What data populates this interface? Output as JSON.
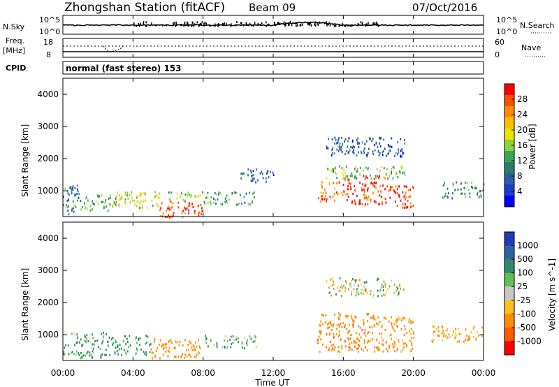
{
  "header": {
    "station": "Zhongshan Station (fitACF)",
    "beam": "Beam 09",
    "date": "07/Oct/2016"
  },
  "noise_panel": {
    "left_label": "N.Sky",
    "left_ticks": [
      "10^5",
      "10^0"
    ],
    "right_ticks": [
      "10^5",
      "10^0"
    ],
    "right_label": "N.Search"
  },
  "freq_panel": {
    "left_label_1": "Freq.",
    "left_label_2": "[MHz]",
    "left_ticks": [
      "18",
      "8"
    ],
    "right_ticks": [
      "60",
      "0"
    ],
    "right_label": "Nave"
  },
  "cpid_panel": {
    "label": "CPID",
    "text": "normal (fast stereo) 153"
  },
  "axes": {
    "ylabel": "Slant Range [km]",
    "xlabel": "Time UT",
    "yticks": [
      "4000",
      "3000",
      "2000",
      "1000"
    ],
    "xticks": [
      "00:00",
      "04:00",
      "08:00",
      "12:00",
      "16:00",
      "20:00",
      "00:00"
    ]
  },
  "power_colorbar": {
    "label": "Power [dB]",
    "ticks": [
      "28",
      "24",
      "20",
      "16",
      "12",
      "8",
      "4"
    ],
    "colors": [
      "#ff0000",
      "#ff4f00",
      "#ff8a00",
      "#ffbf00",
      "#e8e600",
      "#8cd23c",
      "#3aa65a",
      "#2e7d6a",
      "#2a5caa",
      "#1a3cd0",
      "#0000ff"
    ]
  },
  "velocity_colorbar": {
    "label": "Velocity [m s^-1]",
    "ticks": [
      "1000",
      "500",
      "100",
      "25",
      "-25",
      "-100",
      "-500",
      "-1000"
    ],
    "colors": [
      "#1e3cb4",
      "#2d64a0",
      "#2e8a6a",
      "#5fc050",
      "#c8c8c8",
      "#ffbf1e",
      "#ff8c00",
      "#ff5a00",
      "#ff0000"
    ]
  },
  "chart_data": [
    {
      "type": "heatmap",
      "name": "",
      "x_range_hours": [
        0,
        24
      ],
      "y_range_km": [
        200,
        4500
      ],
      "colorbar_label": "Power [dB]",
      "colorbar_ticks": [
        4,
        8,
        12,
        16,
        20,
        24,
        28
      ],
      "regions": [
        {
          "t": [
            0.0,
            1.0
          ],
          "r": [
            300,
            1200
          ],
          "value_db": 10
        },
        {
          "t": [
            1.0,
            3.0
          ],
          "r": [
            400,
            900
          ],
          "value_db": 14
        },
        {
          "t": [
            3.0,
            5.5
          ],
          "r": [
            500,
            1000
          ],
          "value_db": 18
        },
        {
          "t": [
            5.5,
            8.0
          ],
          "r": [
            200,
            700
          ],
          "value_db": 28
        },
        {
          "t": [
            6.0,
            8.0
          ],
          "r": [
            700,
            1000
          ],
          "value_db": 16
        },
        {
          "t": [
            8.0,
            11.0
          ],
          "r": [
            600,
            1000
          ],
          "value_db": 12
        },
        {
          "t": [
            10.0,
            12.0
          ],
          "r": [
            1300,
            1700
          ],
          "value_db": 8
        },
        {
          "t": [
            14.5,
            16.0
          ],
          "r": [
            700,
            1300
          ],
          "value_db": 26
        },
        {
          "t": [
            16.0,
            18.5
          ],
          "r": [
            600,
            1500
          ],
          "value_db": 28
        },
        {
          "t": [
            15.0,
            19.5
          ],
          "r": [
            1400,
            1800
          ],
          "value_db": 14
        },
        {
          "t": [
            18.5,
            20.0
          ],
          "r": [
            500,
            1200
          ],
          "value_db": 28
        },
        {
          "t": [
            15.0,
            19.5
          ],
          "r": [
            2100,
            2700
          ],
          "value_db": 8
        },
        {
          "t": [
            21.5,
            24.0
          ],
          "r": [
            800,
            1300
          ],
          "value_db": 12
        }
      ]
    },
    {
      "type": "heatmap",
      "name": "",
      "x_range_hours": [
        0,
        24
      ],
      "y_range_km": [
        200,
        4500
      ],
      "colorbar_label": "Velocity [m s^-1]",
      "colorbar_ticks": [
        -1000,
        -500,
        -100,
        -25,
        25,
        100,
        500,
        1000
      ],
      "regions": [
        {
          "t": [
            0.0,
            2.5
          ],
          "r": [
            300,
            1100
          ],
          "value_ms": 150
        },
        {
          "t": [
            2.5,
            5.0
          ],
          "r": [
            400,
            1000
          ],
          "value_ms": 200
        },
        {
          "t": [
            5.0,
            8.0
          ],
          "r": [
            300,
            900
          ],
          "value_ms": -300
        },
        {
          "t": [
            8.0,
            11.0
          ],
          "r": [
            600,
            1000
          ],
          "value_ms": 100
        },
        {
          "t": [
            14.5,
            18.0
          ],
          "r": [
            500,
            1700
          ],
          "value_ms": -400
        },
        {
          "t": [
            18.0,
            20.0
          ],
          "r": [
            500,
            1600
          ],
          "value_ms": -200
        },
        {
          "t": [
            15.0,
            19.5
          ],
          "r": [
            2200,
            2800
          ],
          "value_ms": 0
        },
        {
          "t": [
            21.0,
            24.0
          ],
          "r": [
            800,
            1300
          ],
          "value_ms": -150
        }
      ]
    }
  ]
}
